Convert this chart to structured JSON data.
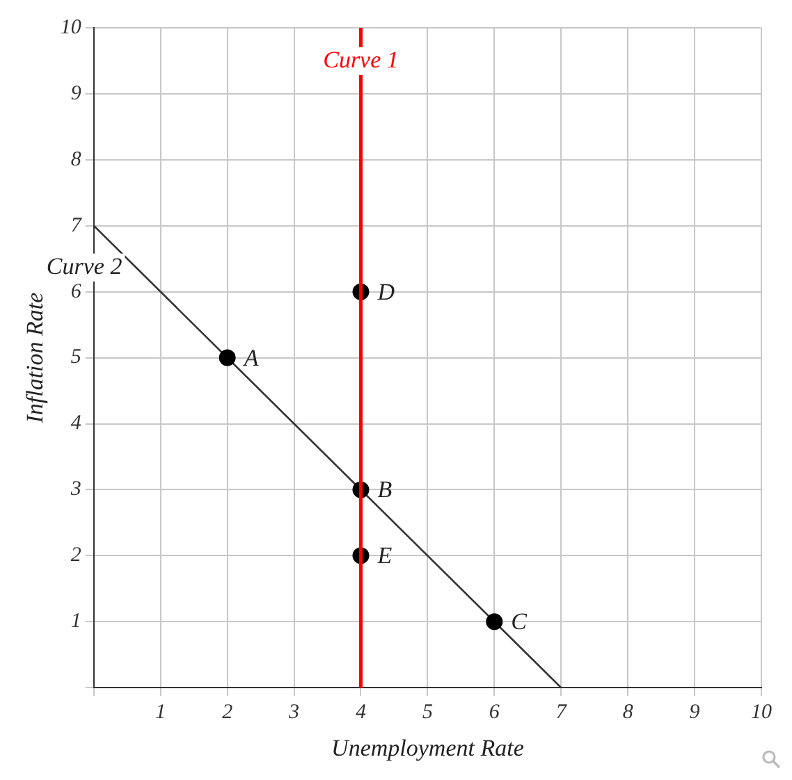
{
  "chart_data": {
    "type": "scatter",
    "xlabel": "Unemployment Rate",
    "ylabel": "Inflation Rate",
    "xlim": [
      0,
      10
    ],
    "ylim": [
      0,
      10
    ],
    "xticks": [
      {
        "value": 0,
        "label": null
      },
      1,
      2,
      3,
      4,
      5,
      6,
      7,
      8,
      9,
      10
    ],
    "yticks": [
      {
        "value": 0,
        "label": null
      },
      1,
      2,
      3,
      4,
      5,
      6,
      7,
      8,
      9,
      10
    ],
    "grid": true,
    "legend": false,
    "marker": "circle",
    "series": [
      {
        "name": "Curve 2",
        "type": "line",
        "color": "#333333",
        "x": [
          0,
          7
        ],
        "values": [
          7,
          0
        ],
        "line_style": "solid",
        "marker": "none"
      },
      {
        "color": "#000000",
        "x": [
          2,
          4,
          6,
          4,
          4
        ],
        "values": [
          5,
          3,
          1,
          6,
          2
        ]
      }
    ],
    "ref_lines": [
      {
        "axis": "x",
        "value": 4,
        "label": "Curve 1",
        "color": "#ff0000"
      }
    ],
    "annotations": [
      {
        "text": "A",
        "x": 2,
        "y": 5
      },
      {
        "text": "B",
        "x": 4,
        "y": 3
      },
      {
        "text": "C",
        "x": 6,
        "y": 1
      },
      {
        "text": "D",
        "x": 4,
        "y": 6
      },
      {
        "text": "E",
        "x": 4,
        "y": 2
      }
    ]
  }
}
